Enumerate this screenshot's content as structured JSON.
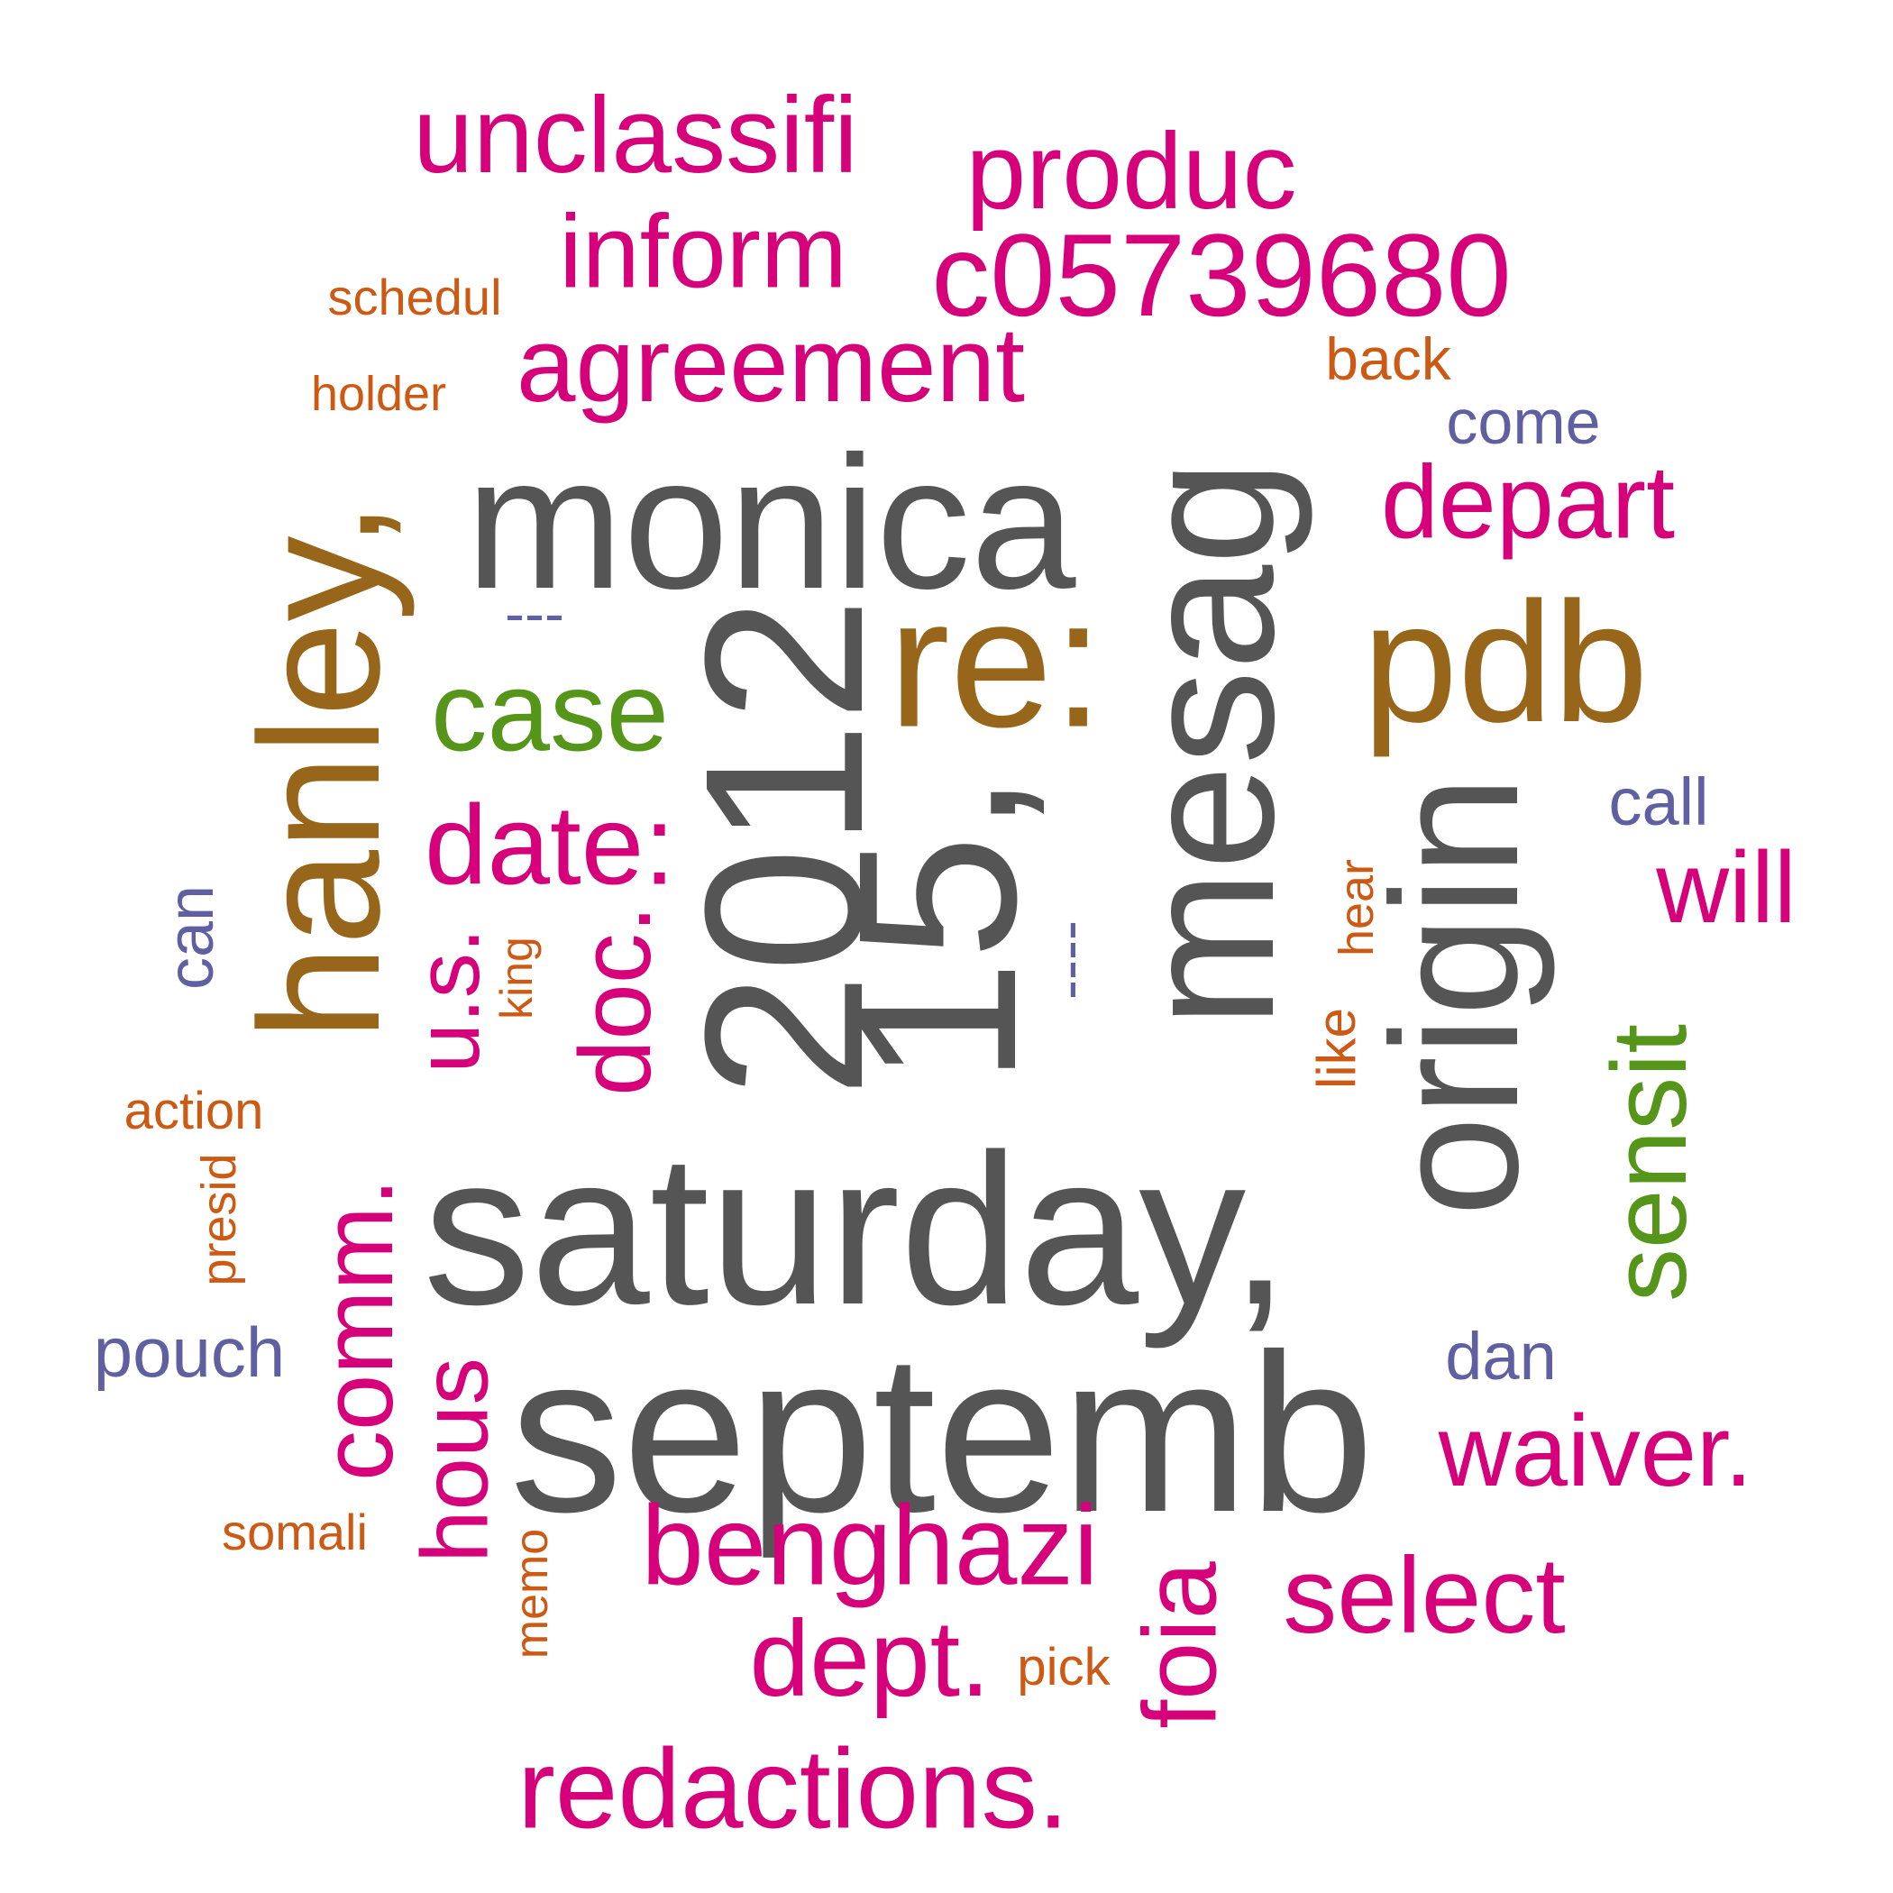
{
  "words": {
    "septemb": "septemb",
    "saturday": "saturday,",
    "monica": "monica",
    "twenty12": "2012",
    "fifteen": "15,",
    "mesag": "mesag",
    "origin": "origin",
    "hanley": "hanley,",
    "re": "re:",
    "pdb": "pdb",
    "unclassifi": "unclassifi",
    "produc": "produc",
    "inform": "inform",
    "c05739680": "c05739680",
    "agreement": "agreement",
    "depart": "depart",
    "case": "case",
    "date": "date:",
    "doc": "doc.",
    "us": "u.s.",
    "comm": "comm.",
    "hous": "hous",
    "benghazi": "benghazi",
    "dept": "dept.",
    "redactions": "redactions.",
    "foia": "foia",
    "select": "select",
    "waiver": "waiver.",
    "will": "will",
    "sensit": "sensit",
    "schedul": "schedul",
    "holder": "holder",
    "back": "back",
    "action": "action",
    "presid": "presid",
    "somali": "somali",
    "memo": "memo",
    "pick": "pick",
    "like": "like",
    "hear": "hear",
    "king": "king",
    "come": "come",
    "call": "call",
    "can": "can",
    "pouch": "pouch",
    "dan": "dan",
    "dash3": "---",
    "dash4": "----"
  },
  "colors": {
    "grey": "#555555",
    "magenta": "#d6007a",
    "brown": "#98661a",
    "green": "#55961a",
    "orange": "#cc5a14",
    "purple": "#5f5fa2"
  }
}
